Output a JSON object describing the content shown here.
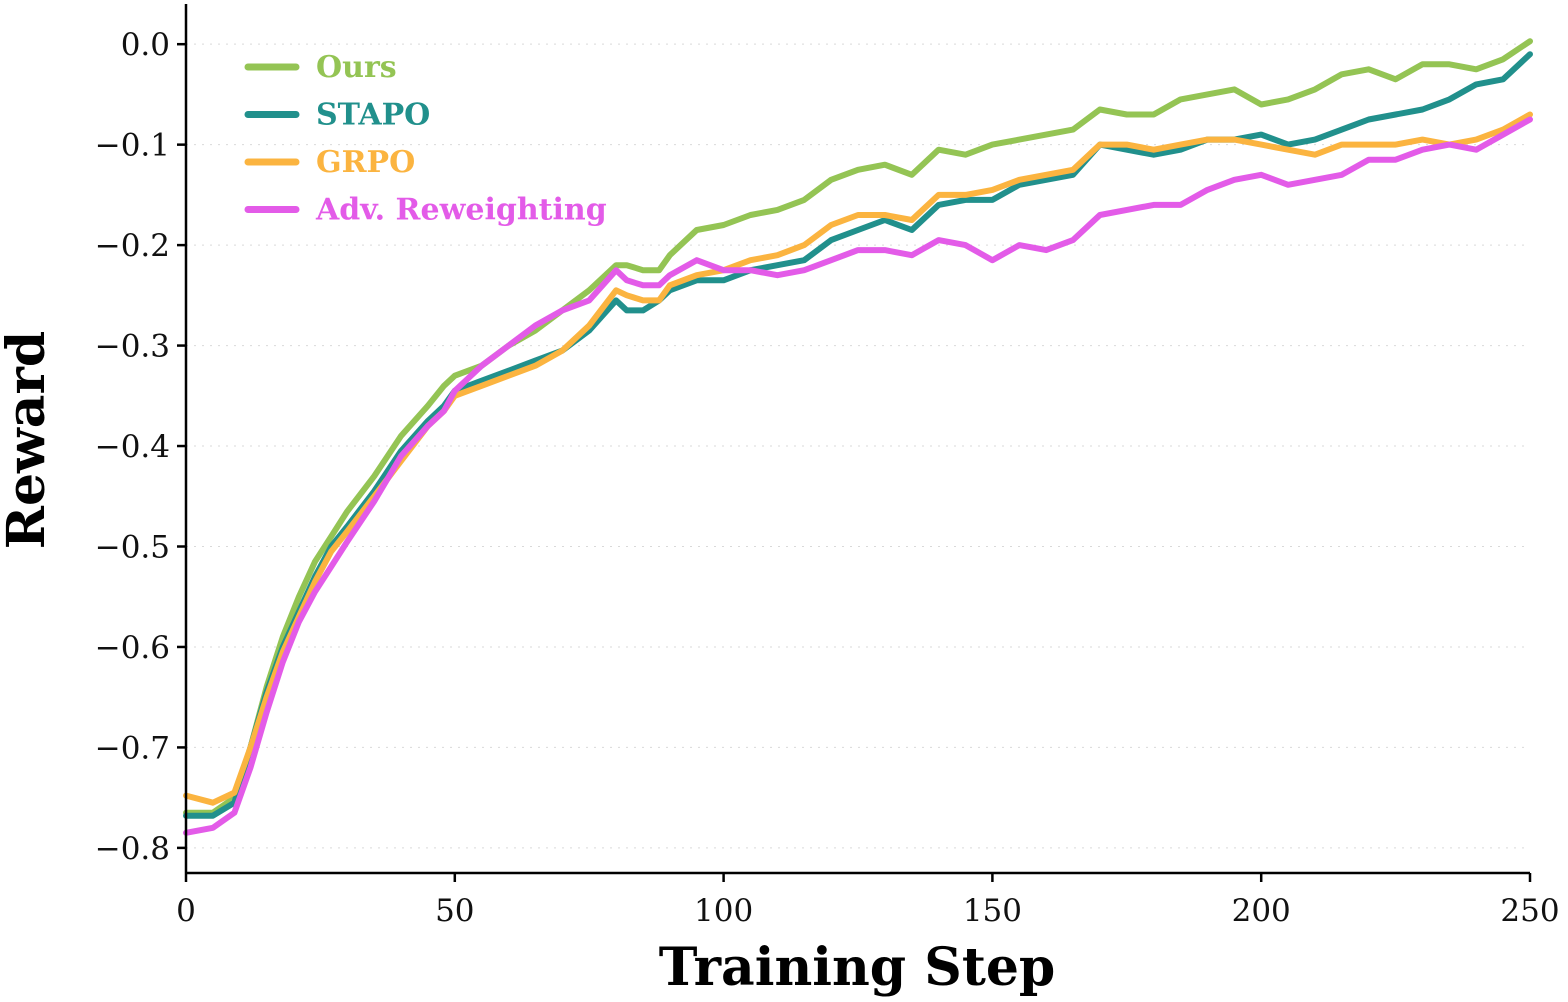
{
  "chart_data": {
    "type": "line",
    "title": "",
    "xlabel": "Training Step",
    "ylabel": "Reward",
    "xlim": [
      0,
      250
    ],
    "ylim": [
      -0.825,
      0.04
    ],
    "xticks": [
      0,
      50,
      100,
      150,
      200,
      250
    ],
    "xtick_labels": [
      "0",
      "50",
      "100",
      "150",
      "200",
      "250"
    ],
    "yticks": [
      0.0,
      -0.1,
      -0.2,
      -0.3,
      -0.4,
      -0.5,
      -0.6,
      -0.7,
      -0.8
    ],
    "ytick_labels": [
      "0.0",
      "−0.1",
      "−0.2",
      "−0.3",
      "−0.4",
      "−0.5",
      "−0.6",
      "−0.7",
      "−0.8"
    ],
    "grid": "horizontal-dotted",
    "legend_position": "top-left",
    "series": [
      {
        "name": "Ours",
        "color": "#94c454",
        "x": [
          0,
          5,
          9,
          12,
          15,
          18,
          21,
          24,
          27,
          30,
          35,
          40,
          45,
          48,
          50,
          55,
          60,
          65,
          70,
          75,
          80,
          82,
          85,
          88,
          90,
          95,
          100,
          105,
          110,
          115,
          120,
          125,
          130,
          135,
          140,
          145,
          150,
          155,
          160,
          165,
          170,
          175,
          180,
          185,
          190,
          195,
          200,
          205,
          210,
          215,
          220,
          225,
          230,
          235,
          240,
          245,
          250
        ],
        "y": [
          -0.765,
          -0.765,
          -0.75,
          -0.7,
          -0.64,
          -0.59,
          -0.55,
          -0.515,
          -0.49,
          -0.465,
          -0.43,
          -0.39,
          -0.36,
          -0.34,
          -0.33,
          -0.32,
          -0.3,
          -0.285,
          -0.265,
          -0.245,
          -0.22,
          -0.22,
          -0.225,
          -0.225,
          -0.21,
          -0.185,
          -0.18,
          -0.17,
          -0.165,
          -0.155,
          -0.135,
          -0.125,
          -0.12,
          -0.13,
          -0.105,
          -0.11,
          -0.1,
          -0.095,
          -0.09,
          -0.085,
          -0.065,
          -0.07,
          -0.07,
          -0.055,
          -0.05,
          -0.045,
          -0.06,
          -0.055,
          -0.045,
          -0.03,
          -0.025,
          -0.035,
          -0.02,
          -0.02,
          -0.025,
          -0.015,
          0.003
        ]
      },
      {
        "name": "STAPO",
        "color": "#21908c",
        "x": [
          0,
          5,
          9,
          12,
          15,
          18,
          21,
          24,
          27,
          30,
          35,
          40,
          45,
          48,
          50,
          55,
          60,
          65,
          70,
          75,
          80,
          82,
          85,
          88,
          90,
          95,
          100,
          105,
          110,
          115,
          120,
          125,
          130,
          135,
          140,
          145,
          150,
          155,
          160,
          165,
          170,
          175,
          180,
          185,
          190,
          195,
          200,
          205,
          210,
          215,
          220,
          225,
          230,
          235,
          240,
          245,
          250
        ],
        "y": [
          -0.768,
          -0.768,
          -0.755,
          -0.7,
          -0.645,
          -0.6,
          -0.565,
          -0.53,
          -0.5,
          -0.48,
          -0.445,
          -0.405,
          -0.375,
          -0.36,
          -0.345,
          -0.335,
          -0.325,
          -0.315,
          -0.305,
          -0.285,
          -0.255,
          -0.265,
          -0.265,
          -0.255,
          -0.245,
          -0.235,
          -0.235,
          -0.225,
          -0.22,
          -0.215,
          -0.195,
          -0.185,
          -0.175,
          -0.185,
          -0.16,
          -0.155,
          -0.155,
          -0.14,
          -0.135,
          -0.13,
          -0.1,
          -0.105,
          -0.11,
          -0.105,
          -0.095,
          -0.095,
          -0.09,
          -0.1,
          -0.095,
          -0.085,
          -0.075,
          -0.07,
          -0.065,
          -0.055,
          -0.04,
          -0.035,
          -0.01
        ]
      },
      {
        "name": "GRPO",
        "color": "#fbb440",
        "x": [
          0,
          5,
          9,
          12,
          15,
          18,
          21,
          24,
          27,
          30,
          35,
          40,
          45,
          48,
          50,
          55,
          60,
          65,
          70,
          75,
          80,
          82,
          85,
          88,
          90,
          95,
          100,
          105,
          110,
          115,
          120,
          125,
          130,
          135,
          140,
          145,
          150,
          155,
          160,
          165,
          170,
          175,
          180,
          185,
          190,
          195,
          200,
          205,
          210,
          215,
          220,
          225,
          230,
          235,
          240,
          245,
          250
        ],
        "y": [
          -0.748,
          -0.755,
          -0.745,
          -0.7,
          -0.65,
          -0.605,
          -0.57,
          -0.535,
          -0.505,
          -0.485,
          -0.45,
          -0.415,
          -0.38,
          -0.365,
          -0.35,
          -0.34,
          -0.33,
          -0.32,
          -0.305,
          -0.28,
          -0.245,
          -0.25,
          -0.255,
          -0.255,
          -0.24,
          -0.23,
          -0.225,
          -0.215,
          -0.21,
          -0.2,
          -0.18,
          -0.17,
          -0.17,
          -0.175,
          -0.15,
          -0.15,
          -0.145,
          -0.135,
          -0.13,
          -0.125,
          -0.1,
          -0.1,
          -0.105,
          -0.1,
          -0.095,
          -0.095,
          -0.1,
          -0.105,
          -0.11,
          -0.1,
          -0.1,
          -0.1,
          -0.095,
          -0.1,
          -0.095,
          -0.085,
          -0.07
        ]
      },
      {
        "name": "Adv. Reweighting",
        "color": "#e35be8",
        "x": [
          0,
          5,
          9,
          12,
          15,
          18,
          21,
          24,
          27,
          30,
          35,
          40,
          45,
          48,
          50,
          55,
          60,
          65,
          70,
          75,
          80,
          82,
          85,
          88,
          90,
          95,
          100,
          105,
          110,
          115,
          120,
          125,
          130,
          135,
          140,
          145,
          150,
          155,
          160,
          165,
          170,
          175,
          180,
          185,
          190,
          195,
          200,
          205,
          210,
          215,
          220,
          225,
          230,
          235,
          240,
          245,
          250
        ],
        "y": [
          -0.785,
          -0.78,
          -0.765,
          -0.72,
          -0.665,
          -0.615,
          -0.575,
          -0.545,
          -0.52,
          -0.495,
          -0.455,
          -0.41,
          -0.38,
          -0.365,
          -0.345,
          -0.32,
          -0.3,
          -0.28,
          -0.265,
          -0.255,
          -0.225,
          -0.235,
          -0.24,
          -0.24,
          -0.23,
          -0.215,
          -0.225,
          -0.225,
          -0.23,
          -0.225,
          -0.215,
          -0.205,
          -0.205,
          -0.21,
          -0.195,
          -0.2,
          -0.215,
          -0.2,
          -0.205,
          -0.195,
          -0.17,
          -0.165,
          -0.16,
          -0.16,
          -0.145,
          -0.135,
          -0.13,
          -0.14,
          -0.135,
          -0.13,
          -0.115,
          -0.115,
          -0.105,
          -0.1,
          -0.105,
          -0.09,
          -0.075
        ]
      }
    ]
  }
}
